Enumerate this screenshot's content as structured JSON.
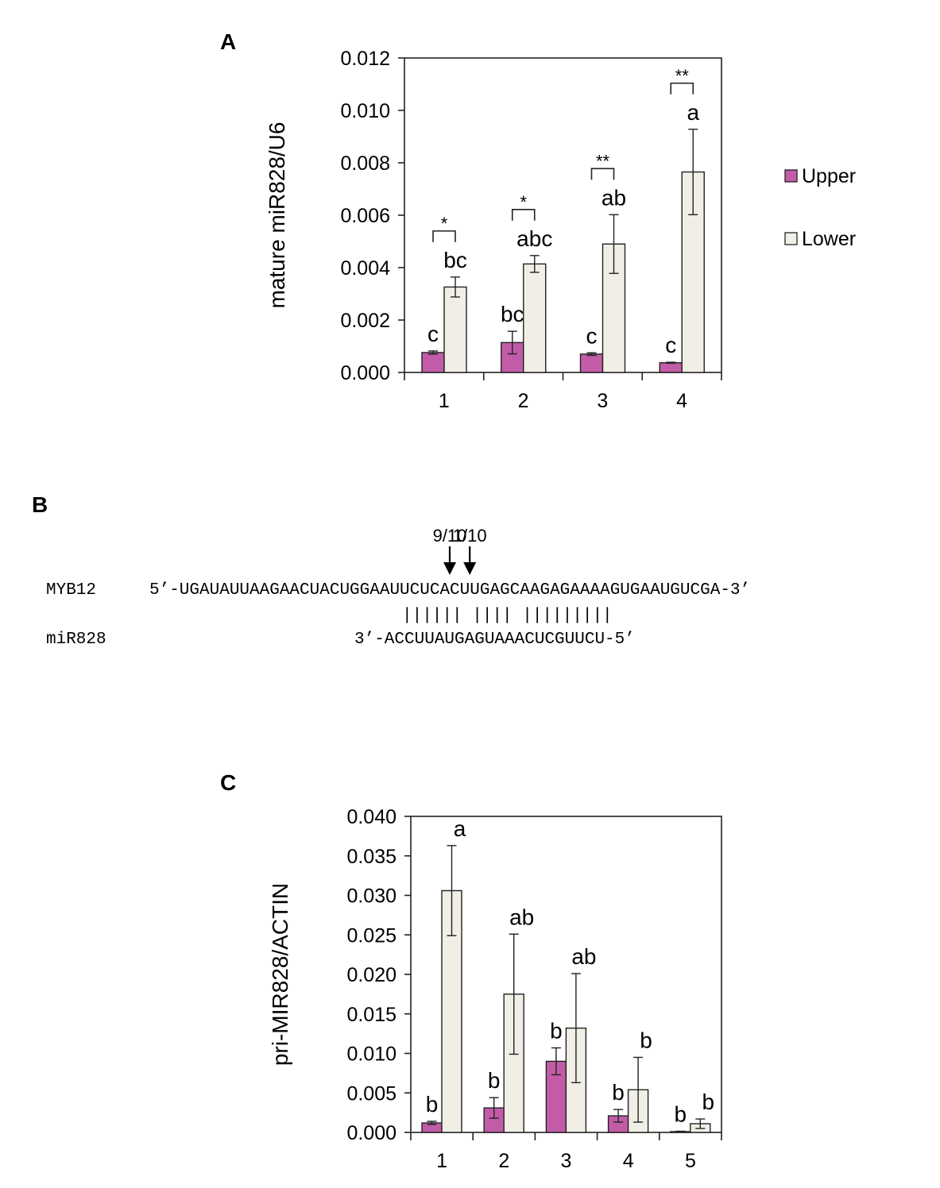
{
  "colors": {
    "upper": "#c25ca8",
    "lower": "#f1eee6",
    "stroke": "#222222"
  },
  "panels": {
    "a": {
      "label": "A"
    },
    "b": {
      "label": "B"
    },
    "c": {
      "label": "C"
    }
  },
  "chart_data": [
    {
      "type": "bar",
      "panel": "A",
      "ylabel": "mature miR828/U6",
      "ylim": [
        0,
        0.012
      ],
      "yticks": [
        "0.000",
        "0.002",
        "0.004",
        "0.006",
        "0.008",
        "0.010",
        "0.012"
      ],
      "categories": [
        "1",
        "2",
        "3",
        "4"
      ],
      "series": [
        {
          "name": "Upper",
          "values": [
            0.00076,
            0.00114,
            0.0007,
            0.00037
          ],
          "errors": [
            6e-05,
            0.00043,
            5e-05,
            2e-05
          ],
          "letters": [
            "c",
            "bc",
            "c",
            "c"
          ]
        },
        {
          "name": "Lower",
          "values": [
            0.00326,
            0.00414,
            0.0049,
            0.00765
          ],
          "errors": [
            0.00038,
            0.00032,
            0.00112,
            0.00163
          ],
          "letters": [
            "bc",
            "abc",
            "ab",
            "a"
          ]
        }
      ],
      "significance": [
        "*",
        "*",
        "**",
        "**"
      ],
      "legend": {
        "position": "right",
        "entries": [
          "Upper",
          "Lower"
        ]
      }
    },
    {
      "type": "bar",
      "panel": "C",
      "ylabel": "pri-MIR828/ACTIN",
      "ylim": [
        0,
        0.04
      ],
      "yticks": [
        "0.000",
        "0.005",
        "0.010",
        "0.015",
        "0.020",
        "0.025",
        "0.030",
        "0.035",
        "0.040"
      ],
      "categories": [
        "1",
        "2",
        "3",
        "4",
        "5"
      ],
      "series": [
        {
          "name": "Upper",
          "values": [
            0.0012,
            0.0031,
            0.009,
            0.0021,
            0.0001
          ],
          "errors": [
            0.0002,
            0.0013,
            0.0017,
            0.0008,
            5e-05
          ],
          "letters": [
            "b",
            "b",
            "b",
            "b",
            "b"
          ]
        },
        {
          "name": "Lower",
          "values": [
            0.0306,
            0.0175,
            0.0132,
            0.0054,
            0.0011
          ],
          "errors": [
            0.0057,
            0.0076,
            0.0069,
            0.0041,
            0.0006
          ],
          "letters": [
            "a",
            "ab",
            "ab",
            "b",
            "b"
          ]
        }
      ]
    }
  ],
  "alignment": {
    "target_name": "MYB12",
    "target_seq": "5’-UGAUAUUAAGAACUACUGGAAUUCUCACUUGAGCAAGAGAAAAGUGAAUGUCGA-3’",
    "mirna_name": "miR828",
    "mirna_seq": "3’-ACCUUAUGAGUAAACUCGUUCU-5’",
    "pairing": "|||||| |||| |||||||||",
    "cleavage_sites": [
      {
        "label": "9/10",
        "after_index": 30
      },
      {
        "label": "1/10",
        "after_index": 32
      }
    ]
  }
}
